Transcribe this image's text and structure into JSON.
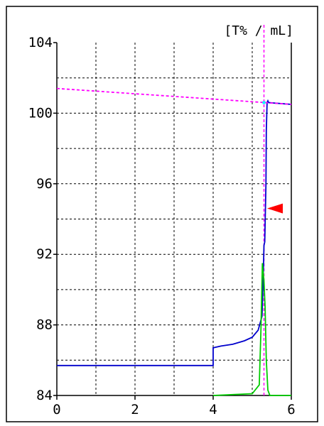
{
  "chart_data": {
    "type": "line",
    "unit_label": "[T% / mL]",
    "xlim": [
      0,
      6
    ],
    "ylim": [
      84,
      104
    ],
    "x_ticks": [
      "0",
      "2",
      "4",
      "6"
    ],
    "y_ticks": [
      "84",
      "88",
      "92",
      "96",
      "100",
      "104"
    ],
    "grid": true,
    "marker_x": 5.3,
    "series": [
      {
        "color": "#0000cc",
        "x": [
          0,
          4.0,
          4.0,
          4.2,
          4.5,
          4.8,
          5.0,
          5.15,
          5.25,
          5.28,
          5.3,
          5.32,
          5.35,
          5.36,
          5.38,
          5.4,
          5.42,
          6.0
        ],
        "y": [
          85.7,
          85.7,
          86.7,
          86.8,
          86.9,
          87.1,
          87.3,
          87.7,
          88.5,
          90.5,
          92.5,
          92.7,
          96.0,
          99.0,
          100.6,
          100.7,
          100.6,
          100.5
        ]
      },
      {
        "color": "#00cc00",
        "x": [
          4.0,
          5.0,
          5.18,
          5.22,
          5.26,
          5.3,
          5.33,
          5.36,
          5.4,
          5.45,
          6.0
        ],
        "y": [
          84.0,
          84.1,
          84.6,
          87.5,
          91.5,
          90.5,
          89.0,
          86.0,
          84.3,
          84.0,
          84.0
        ]
      },
      {
        "color": "#ff00ff",
        "x": [
          0,
          6.0
        ],
        "y": [
          101.4,
          100.5
        ]
      }
    ],
    "arrow_marker": {
      "color": "#ff0000",
      "y": 94.6
    },
    "point_marker": {
      "color": "#00ffff",
      "x": 5.3,
      "y": 100.6
    }
  }
}
